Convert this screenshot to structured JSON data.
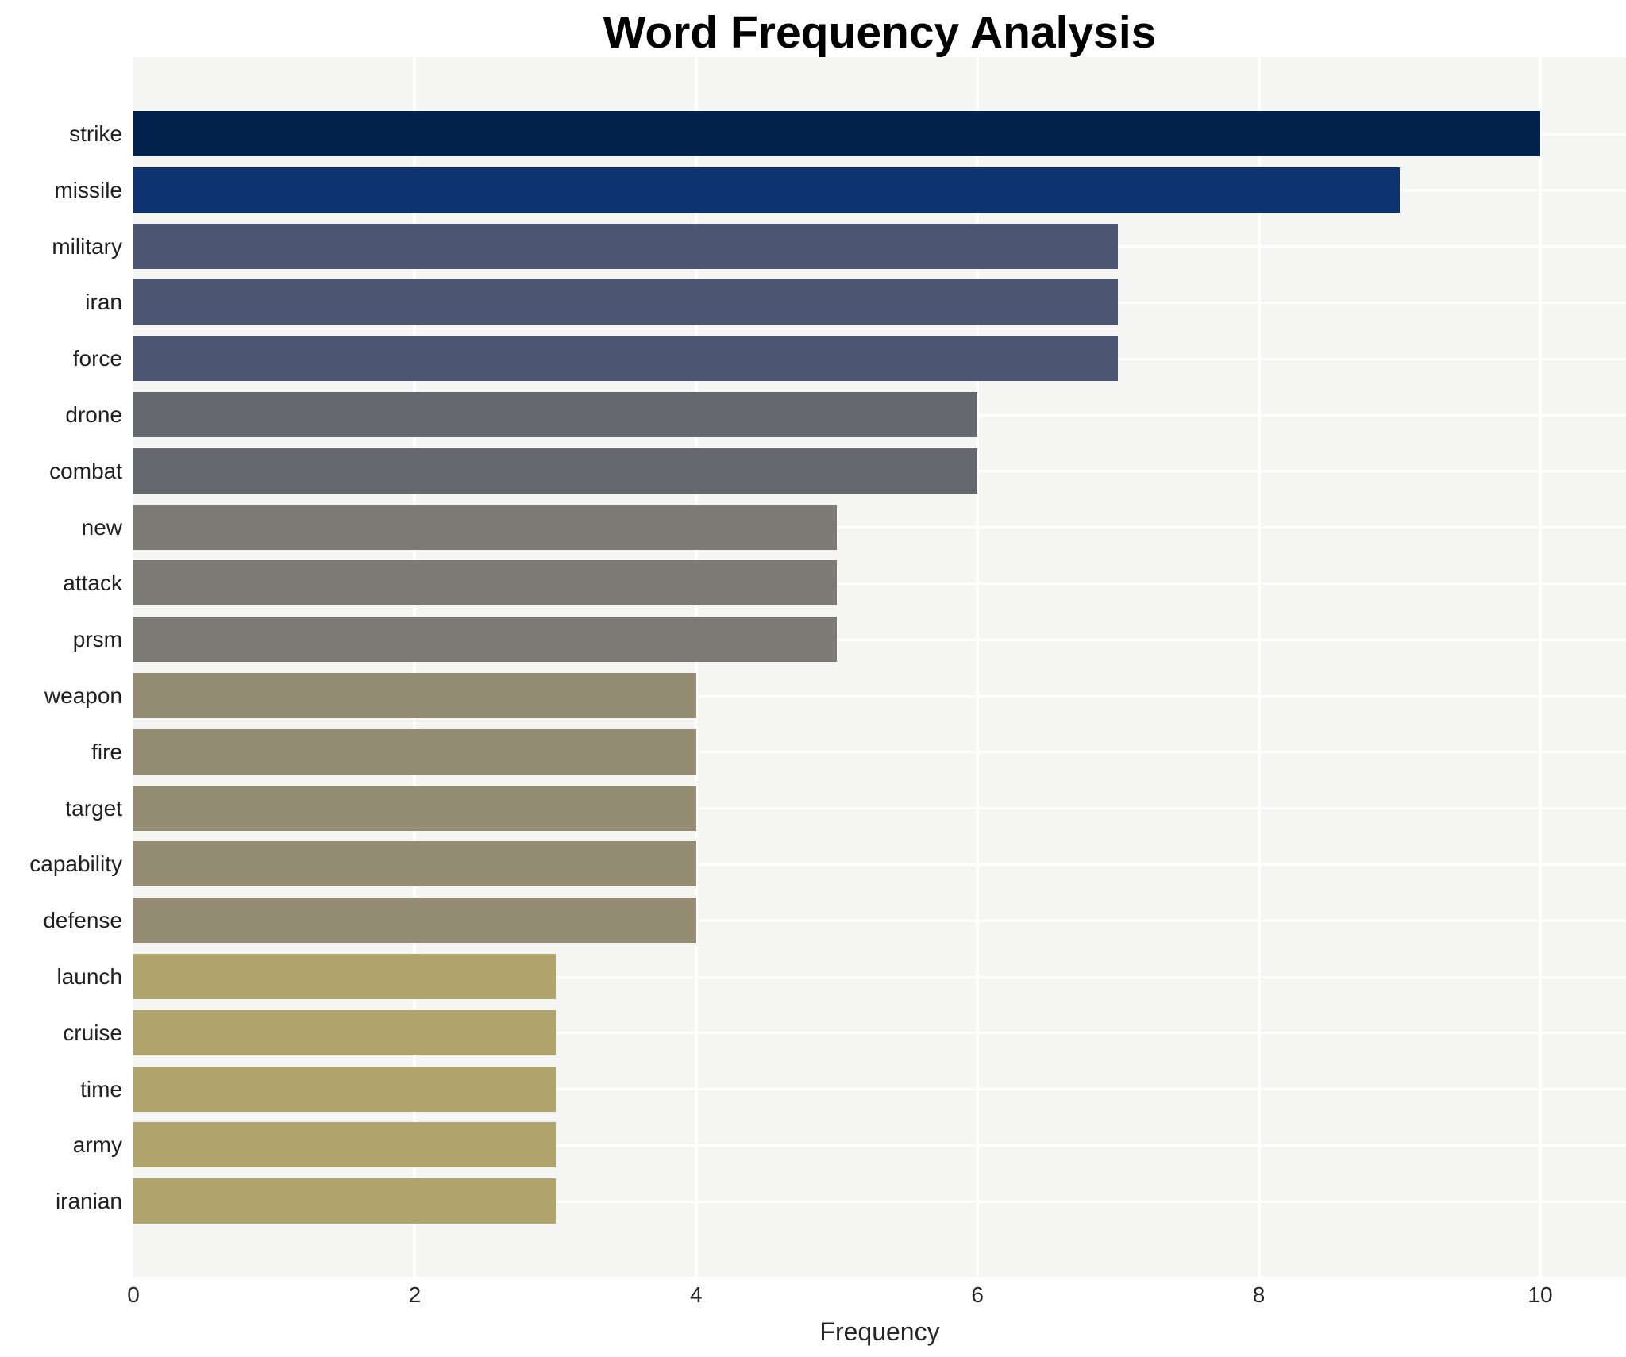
{
  "chart_data": {
    "type": "bar",
    "orientation": "horizontal",
    "title": "Word Frequency Analysis",
    "xlabel": "Frequency",
    "ylabel": "",
    "categories": [
      "strike",
      "missile",
      "military",
      "iran",
      "force",
      "drone",
      "combat",
      "new",
      "attack",
      "prsm",
      "weapon",
      "fire",
      "target",
      "capability",
      "defense",
      "launch",
      "cruise",
      "time",
      "army",
      "iranian"
    ],
    "values": [
      10,
      9,
      7,
      7,
      7,
      6,
      6,
      5,
      5,
      5,
      4,
      4,
      4,
      4,
      4,
      3,
      3,
      3,
      3,
      3
    ],
    "bar_colors": [
      "#02224e",
      "#0d3470",
      "#4c5571",
      "#4c5571",
      "#4c5571",
      "#65686f",
      "#65686f",
      "#7b7a74",
      "#7b7a74",
      "#7b7a74",
      "#948d73",
      "#948d73",
      "#948d73",
      "#948d73",
      "#948d73",
      "#afa46c",
      "#afa46c",
      "#afa46c",
      "#afa46c",
      "#afa46c"
    ],
    "xticks": [
      0,
      2,
      4,
      6,
      8,
      10
    ],
    "xlim": [
      0,
      10.61
    ],
    "grid": true,
    "legend": "none",
    "plot_bg_color": "#f5f5f3",
    "grid_color": "#ffffff",
    "tick_text_color": "#262626",
    "label_text_color": "#1f1f1f",
    "title_color": "#000000"
  }
}
